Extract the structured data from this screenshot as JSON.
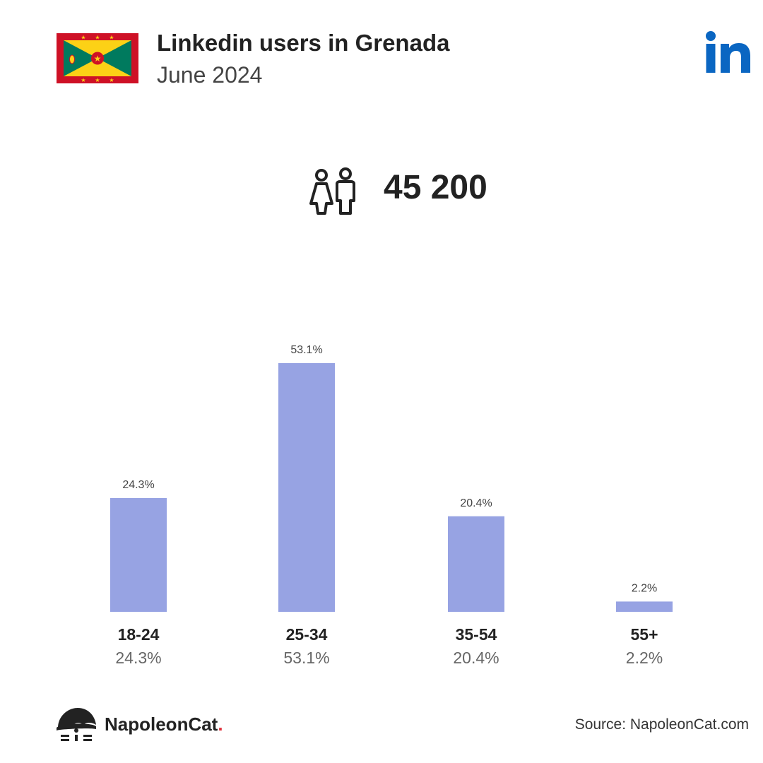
{
  "header": {
    "title": "Linkedin users in Grenada",
    "subtitle": "June 2024"
  },
  "total": {
    "value": "45 200",
    "icon": "users-icon"
  },
  "colors": {
    "bar": "#97a3e3",
    "flag_red": "#ce1126",
    "flag_green": "#007a5e",
    "flag_yellow": "#fcd116",
    "linkedin_blue": "#0a66c2"
  },
  "chart_data": {
    "type": "bar",
    "categories": [
      "18-24",
      "25-34",
      "35-54",
      "55+"
    ],
    "values": [
      24.3,
      53.1,
      20.4,
      2.2
    ],
    "value_labels": [
      "24.3%",
      "53.1%",
      "20.4%",
      "2.2%"
    ],
    "unit": "%",
    "ylim": [
      0,
      53.1
    ],
    "grid": false,
    "legend": "none"
  },
  "footer": {
    "brand": "NapoleonCat",
    "brand_dot": ".",
    "source": "Source: NapoleonCat.com"
  }
}
